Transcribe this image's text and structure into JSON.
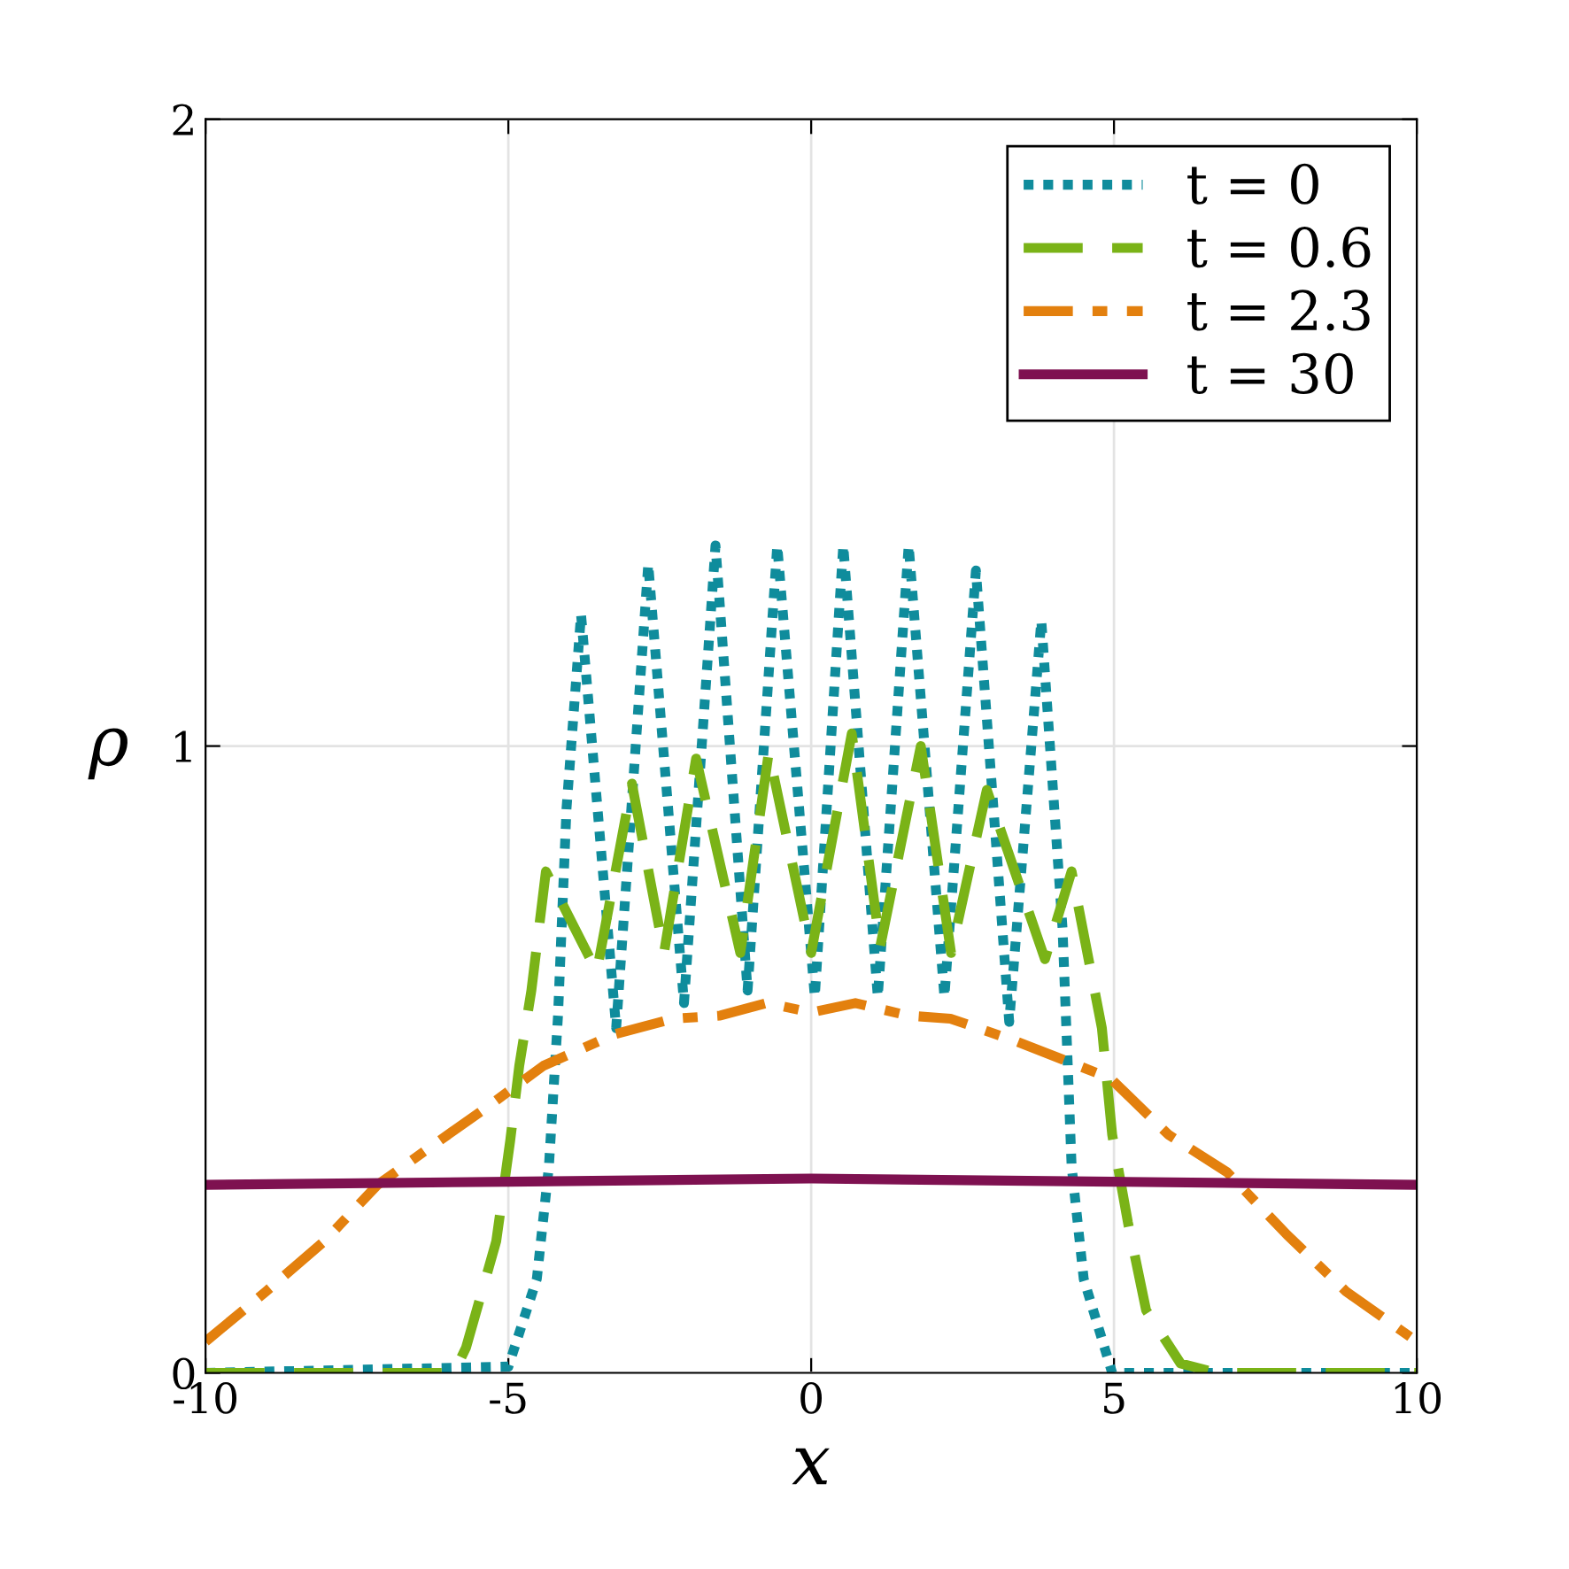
{
  "chart_data": {
    "type": "line",
    "xlabel": "x",
    "ylabel": "ρ",
    "xlim": [
      -10,
      10
    ],
    "ylim": [
      0,
      2
    ],
    "xticks": [
      {
        "value": -10,
        "label": "-10"
      },
      {
        "value": -5,
        "label": "-5"
      },
      0,
      5,
      10
    ],
    "yticks": [
      0,
      1,
      2
    ],
    "grid": true,
    "legend": "top right",
    "series": [
      {
        "name": "t = 0",
        "color": "#0f8c9c",
        "line_style": "dotted",
        "x": [
          -10,
          -5.0,
          -4.53,
          -4.33,
          -4.18,
          -4.04,
          -3.8,
          -3.22,
          -2.69,
          -2.1,
          -1.58,
          -1.05,
          -0.56,
          0.06,
          0.53,
          1.1,
          1.61,
          2.2,
          2.72,
          3.27,
          3.8,
          4.15,
          4.3,
          4.5,
          4.97,
          10
        ],
        "values": [
          0,
          0.01,
          0.15,
          0.33,
          0.57,
          0.9,
          1.21,
          0.55,
          1.29,
          0.59,
          1.32,
          0.61,
          1.32,
          0.6,
          1.32,
          0.6,
          1.32,
          0.6,
          1.28,
          0.56,
          1.2,
          0.71,
          0.33,
          0.15,
          0,
          0
        ]
      },
      {
        "name": "t = 0.6",
        "color": "#7ab317",
        "line_style": "dashed",
        "x": [
          -10,
          -5.9,
          -5.7,
          -5.2,
          -4.97,
          -4.82,
          -4.62,
          -4.38,
          -3.54,
          -2.96,
          -2.43,
          -1.9,
          -1.17,
          -0.7,
          0,
          0.67,
          1.14,
          1.81,
          2.31,
          2.9,
          3.86,
          4.3,
          4.8,
          4.97,
          5.23,
          5.53,
          6.1,
          6.7,
          10
        ],
        "values": [
          0,
          0,
          0.04,
          0.21,
          0.37,
          0.49,
          0.61,
          0.8,
          0.64,
          0.94,
          0.67,
          0.98,
          0.67,
          0.99,
          0.67,
          1.02,
          0.68,
          1.0,
          0.67,
          0.93,
          0.66,
          0.8,
          0.55,
          0.38,
          0.24,
          0.1,
          0.015,
          0,
          0
        ]
      },
      {
        "name": "t = 2.3",
        "color": "#e3800e",
        "line_style": "dashdot",
        "x": [
          -10,
          -9.0,
          -8.04,
          -7.16,
          -6.29,
          -5.41,
          -4.42,
          -3.25,
          -2.28,
          -1.5,
          -0.73,
          0,
          0.73,
          1.6,
          2.3,
          3.36,
          4.15,
          4.94,
          5.9,
          6.87,
          7.86,
          8.83,
          10
        ],
        "values": [
          0.05,
          0.13,
          0.21,
          0.3,
          0.36,
          0.42,
          0.49,
          0.54,
          0.565,
          0.57,
          0.59,
          0.575,
          0.59,
          0.57,
          0.565,
          0.53,
          0.5,
          0.47,
          0.38,
          0.32,
          0.22,
          0.13,
          0.05
        ]
      },
      {
        "name": "t = 30",
        "color": "#7e1150",
        "line_style": "solid",
        "x": [
          -10,
          -5,
          0,
          5,
          10
        ],
        "values": [
          0.3,
          0.305,
          0.31,
          0.305,
          0.3
        ]
      }
    ]
  }
}
